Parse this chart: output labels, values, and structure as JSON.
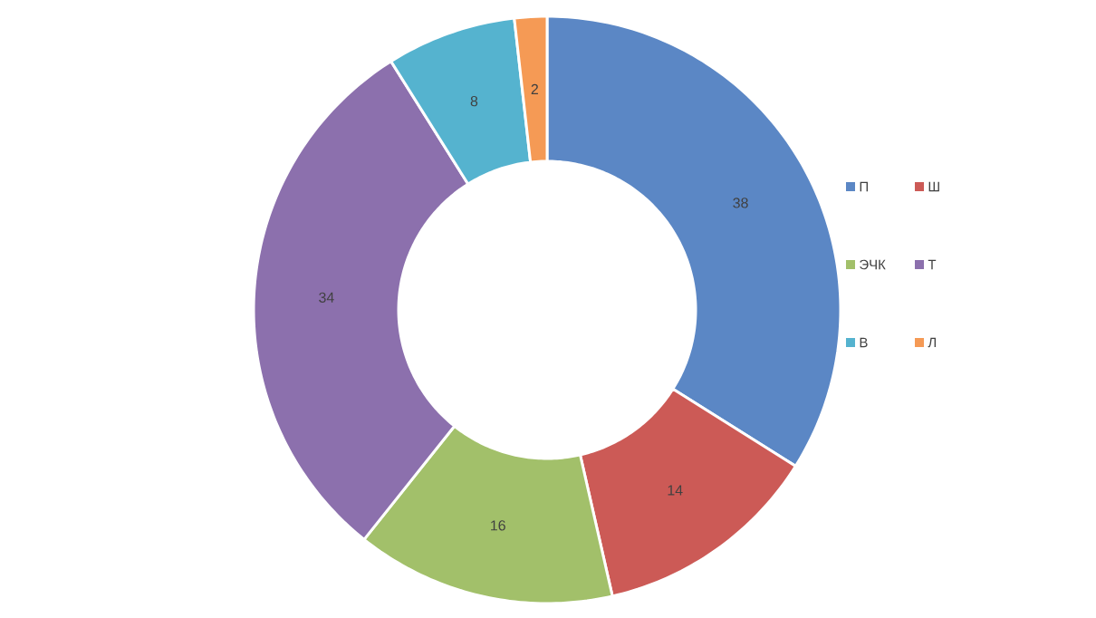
{
  "chart_data": {
    "type": "donut",
    "categories": [
      "П",
      "Ш",
      "ЭЧК",
      "Т",
      "В",
      "Л"
    ],
    "values": [
      38,
      14,
      16,
      34,
      8,
      2
    ],
    "colors": [
      "#5b87c5",
      "#cc5a56",
      "#a2c06a",
      "#8c70ad",
      "#55b3cf",
      "#f59a55"
    ],
    "data_labels": true,
    "legend": "right"
  }
}
